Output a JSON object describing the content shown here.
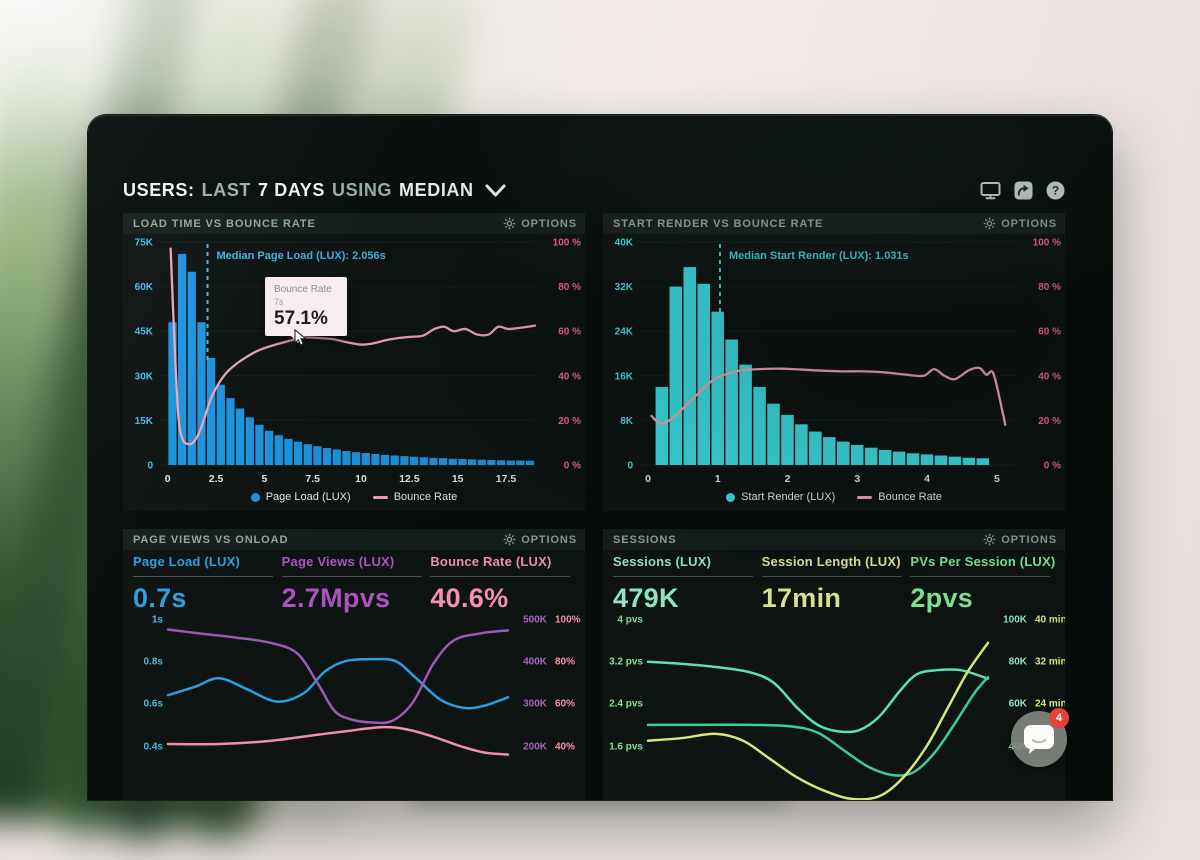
{
  "header": {
    "users": "USERS:",
    "range": "LAST",
    "days": "7 DAYS",
    "using": "USING",
    "metric": "MEDIAN",
    "icons": [
      "display-icon",
      "share-icon",
      "help-icon"
    ]
  },
  "panels": [
    {
      "title": "LOAD TIME VS BOUNCE RATE",
      "options_label": "OPTIONS",
      "tooltip": {
        "title": "Bounce Rate",
        "x_label": "7s",
        "value": "57.1%"
      },
      "legend": [
        {
          "label": "Page Load (LUX)"
        },
        {
          "label": "Bounce Rate"
        }
      ]
    },
    {
      "title": "START RENDER VS BOUNCE RATE",
      "options_label": "OPTIONS",
      "legend": [
        {
          "label": "Start Render (LUX)"
        },
        {
          "label": "Bounce Rate"
        }
      ]
    },
    {
      "title": "PAGE VIEWS VS ONLOAD",
      "options_label": "OPTIONS",
      "metrics": [
        {
          "label": "Page Load (LUX)",
          "value": "0.7s",
          "color": "#2b9fe0"
        },
        {
          "label": "Page Views (LUX)",
          "value": "2.7Mpvs",
          "color": "#ad52c0"
        },
        {
          "label": "Bounce Rate (LUX)",
          "value": "40.6%",
          "color": "#f791b1"
        }
      ]
    },
    {
      "title": "SESSIONS",
      "options_label": "OPTIONS",
      "metrics": [
        {
          "label": "Sessions (LUX)",
          "value": "479K",
          "color": "#96ecc7"
        },
        {
          "label": "Session Length (LUX)",
          "value": "17min",
          "color": "#e5ec99"
        },
        {
          "label": "PVs Per Session (LUX)",
          "value": "2pvs",
          "color": "#7fee98"
        }
      ]
    }
  ],
  "chat": {
    "badge": "4"
  },
  "chart_data": [
    {
      "id": "load_time",
      "type": "histogram+line",
      "title": "LOAD TIME VS BOUNCE RATE",
      "x": {
        "min": -0.4,
        "max": 19.0,
        "ticks": [
          0,
          2.5,
          5,
          7.5,
          10,
          12.5,
          15,
          17.5
        ],
        "tick_labels": [
          "0",
          "2.5",
          "5",
          "7.5",
          "10",
          "12.5",
          "15",
          "17.5"
        ],
        "unit": "seconds"
      },
      "y_left": {
        "color": "#49b8e8",
        "labels": [
          "75K",
          "60K",
          "45K",
          "30K",
          "15K",
          "0"
        ],
        "max": 75
      },
      "y_right": {
        "color": "#f0638f",
        "labels": [
          "100 %",
          "80 %",
          "60 %",
          "40 %",
          "20 %",
          "0 %"
        ],
        "max": 100
      },
      "bars": {
        "name": "Page Load (LUX)",
        "color": "#1d93dd",
        "bin_start": 0,
        "bin_width": 0.5,
        "ymax": 75,
        "values": [
          48,
          71,
          65,
          48,
          36,
          27,
          22.5,
          19,
          16,
          13.5,
          11.5,
          10,
          8.8,
          7.8,
          7,
          6.3,
          5.7,
          5.2,
          4.7,
          4.3,
          4,
          3.7,
          3.4,
          3.2,
          3,
          2.8,
          2.6,
          2.4,
          2.3,
          2.1,
          2,
          1.9,
          1.8,
          1.7,
          1.6,
          1.5,
          1.5,
          1.4
        ]
      },
      "line": {
        "name": "Bounce Rate",
        "color": "#efa3b6",
        "points": [
          [
            0.15,
            97
          ],
          [
            0.35,
            55
          ],
          [
            0.55,
            22
          ],
          [
            0.75,
            12
          ],
          [
            1,
            9.5
          ],
          [
            1.3,
            10
          ],
          [
            1.6,
            14
          ],
          [
            1.9,
            21
          ],
          [
            2.2,
            29
          ],
          [
            2.6,
            36
          ],
          [
            3,
            41
          ],
          [
            3.5,
            45
          ],
          [
            4,
            48
          ],
          [
            4.6,
            51
          ],
          [
            5.2,
            53
          ],
          [
            6,
            55
          ],
          [
            7,
            57.1
          ],
          [
            7.7,
            57
          ],
          [
            8.5,
            56.5
          ],
          [
            9.3,
            55
          ],
          [
            10,
            54
          ],
          [
            10.6,
            54.5
          ],
          [
            11.3,
            56
          ],
          [
            12,
            57
          ],
          [
            12.6,
            57.5
          ],
          [
            13.2,
            58
          ],
          [
            13.8,
            61
          ],
          [
            14.3,
            62
          ],
          [
            14.8,
            60
          ],
          [
            15.4,
            61
          ],
          [
            16,
            58.5
          ],
          [
            16.6,
            58.5
          ],
          [
            17.1,
            62
          ],
          [
            17.6,
            61
          ],
          [
            18.2,
            61.5
          ],
          [
            19,
            62.5
          ]
        ]
      },
      "median": {
        "label": "Median Page Load (LUX): 2.056s",
        "value": 2.056,
        "color": "#45b4e6"
      }
    },
    {
      "id": "start_render",
      "type": "histogram+line",
      "title": "START RENDER VS BOUNCE RATE",
      "x": {
        "min": -0.115,
        "max": 5.26,
        "ticks": [
          0,
          1,
          2,
          3,
          4,
          5
        ],
        "tick_labels": [
          "0",
          "1",
          "2",
          "3",
          "4",
          "5"
        ],
        "unit": "seconds"
      },
      "y_left": {
        "color": "#4fd8e0",
        "labels": [
          "40K",
          "32K",
          "24K",
          "16K",
          "8K",
          "0"
        ],
        "max": 40
      },
      "y_right": {
        "color": "#f0638f",
        "labels": [
          "100 %",
          "80 %",
          "60 %",
          "40 %",
          "20 %",
          "0 %"
        ],
        "max": 100
      },
      "bars": {
        "name": "Start Render (LUX)",
        "color": "#3bdce3",
        "bin_start": 0.1,
        "bin_width": 0.2,
        "ymax": 40,
        "values": [
          14,
          32,
          35.5,
          32.5,
          27.5,
          22.5,
          18,
          14,
          11,
          9,
          7.3,
          6,
          5,
          4.2,
          3.6,
          3.1,
          2.7,
          2.4,
          2.1,
          1.9,
          1.7,
          1.5,
          1.3,
          1.2
        ]
      },
      "line": {
        "name": "Bounce Rate",
        "color": "#efa3b6",
        "points": [
          [
            0.05,
            22
          ],
          [
            0.18,
            18.5
          ],
          [
            0.35,
            21
          ],
          [
            0.55,
            27
          ],
          [
            0.75,
            33
          ],
          [
            0.95,
            38.5
          ],
          [
            1.15,
            41
          ],
          [
            1.35,
            42.5
          ],
          [
            1.6,
            43
          ],
          [
            1.9,
            43.2
          ],
          [
            2.2,
            42.8
          ],
          [
            2.5,
            42.3
          ],
          [
            2.8,
            42
          ],
          [
            3.1,
            42
          ],
          [
            3.4,
            41.5
          ],
          [
            3.7,
            40.5
          ],
          [
            3.95,
            40
          ],
          [
            4.1,
            43
          ],
          [
            4.25,
            40
          ],
          [
            4.4,
            38.5
          ],
          [
            4.6,
            42.5
          ],
          [
            4.75,
            43.5
          ],
          [
            4.85,
            40.5
          ],
          [
            4.95,
            41
          ],
          [
            5.08,
            24
          ],
          [
            5.12,
            18
          ]
        ]
      },
      "median": {
        "label": "Median Start Render (LUX): 1.031s",
        "value": 1.031,
        "color": "#45d0de"
      }
    },
    {
      "id": "pageviews_onload",
      "type": "multi_line",
      "title": "PAGE VIEWS VS ONLOAD",
      "axes": {
        "left": {
          "color": "#49b8e8",
          "labels": [
            "1s",
            "0.8s",
            "0.6s",
            "0.4s"
          ]
        },
        "right1": {
          "color": "#a863b8",
          "labels": [
            "500K",
            "400K",
            "300K",
            "200K"
          ]
        },
        "right2": {
          "color": "#f791b1",
          "labels": [
            "100%",
            "80%",
            "60%",
            "40%"
          ]
        }
      },
      "series": [
        {
          "name": "Page Load (LUX)",
          "color": "#2b9fe0",
          "unit": "s",
          "scale": [
            0.14,
            1.047
          ],
          "points": [
            [
              0,
              0.64
            ],
            [
              0.08,
              0.68
            ],
            [
              0.15,
              0.72
            ],
            [
              0.23,
              0.67
            ],
            [
              0.32,
              0.61
            ],
            [
              0.4,
              0.65
            ],
            [
              0.46,
              0.75
            ],
            [
              0.52,
              0.8
            ],
            [
              0.6,
              0.81
            ],
            [
              0.67,
              0.8
            ],
            [
              0.73,
              0.72
            ],
            [
              0.8,
              0.62
            ],
            [
              0.87,
              0.58
            ],
            [
              0.93,
              0.59
            ],
            [
              1,
              0.63
            ]
          ]
        },
        {
          "name": "Page Views (LUX)",
          "color": "#9b59b3",
          "unit": "K pvs",
          "scale": [
            74,
            524
          ],
          "points": [
            [
              0,
              476
            ],
            [
              0.1,
              466
            ],
            [
              0.2,
              457
            ],
            [
              0.3,
              445
            ],
            [
              0.38,
              420
            ],
            [
              0.44,
              350
            ],
            [
              0.49,
              285
            ],
            [
              0.54,
              265
            ],
            [
              0.6,
              258
            ],
            [
              0.66,
              262
            ],
            [
              0.72,
              305
            ],
            [
              0.78,
              395
            ],
            [
              0.84,
              450
            ],
            [
              0.92,
              467
            ],
            [
              1,
              474
            ]
          ]
        },
        {
          "name": "Bounce Rate (LUX)",
          "color": "#ef8fa8",
          "unit": "%",
          "scale": [
            14,
            105
          ],
          "points": [
            [
              0,
              41
            ],
            [
              0.15,
              41
            ],
            [
              0.3,
              42.5
            ],
            [
              0.42,
              45
            ],
            [
              0.52,
              47
            ],
            [
              0.63,
              49
            ],
            [
              0.7,
              48
            ],
            [
              0.78,
              44.5
            ],
            [
              0.86,
              40
            ],
            [
              0.93,
              37
            ],
            [
              1,
              36
            ]
          ]
        }
      ]
    },
    {
      "id": "sessions",
      "type": "multi_line",
      "title": "SESSIONS",
      "axes": {
        "left": {
          "color": "#7fe596",
          "labels": [
            "4 pvs",
            "3.2 pvs",
            "2.4 pvs",
            "1.6 pvs"
          ]
        },
        "right1": {
          "color": "#8fe8c0",
          "labels": [
            "100K",
            "80K",
            "60K",
            "40K"
          ]
        },
        "right2": {
          "color": "#d6e878",
          "labels": [
            "40 min",
            "32 min",
            "24 min",
            ""
          ]
        }
      },
      "series": [
        {
          "name": "Sessions (LUX)",
          "color": "#5fe3ae",
          "unit": "K",
          "scale": [
            14,
            105
          ],
          "points": [
            [
              0,
              80
            ],
            [
              0.1,
              79
            ],
            [
              0.2,
              77.5
            ],
            [
              0.3,
              75
            ],
            [
              0.37,
              70
            ],
            [
              0.44,
              58
            ],
            [
              0.5,
              50
            ],
            [
              0.56,
              47
            ],
            [
              0.62,
              47.5
            ],
            [
              0.68,
              54
            ],
            [
              0.74,
              66
            ],
            [
              0.79,
              74
            ],
            [
              0.85,
              76
            ],
            [
              0.92,
              76
            ],
            [
              1,
              72
            ]
          ]
        },
        {
          "name": "PVs Per Session (LUX)",
          "color": "#3bcf97",
          "unit": "pvs",
          "scale": [
            0.56,
            4.19
          ],
          "points": [
            [
              0,
              2.0
            ],
            [
              0.15,
              2.0
            ],
            [
              0.3,
              2.0
            ],
            [
              0.42,
              1.97
            ],
            [
              0.5,
              1.85
            ],
            [
              0.58,
              1.5
            ],
            [
              0.65,
              1.2
            ],
            [
              0.72,
              1.05
            ],
            [
              0.78,
              1.1
            ],
            [
              0.84,
              1.45
            ],
            [
              0.9,
              2.0
            ],
            [
              0.96,
              2.6
            ],
            [
              1,
              2.9
            ]
          ]
        },
        {
          "name": "Session Length (LUX)",
          "color": "#d6e878",
          "unit": "min",
          "scale": [
            5.6,
            41.9
          ],
          "points": [
            [
              0,
              17
            ],
            [
              0.1,
              17.5
            ],
            [
              0.2,
              18.3
            ],
            [
              0.28,
              17
            ],
            [
              0.36,
              13.5
            ],
            [
              0.44,
              10
            ],
            [
              0.52,
              7.5
            ],
            [
              0.6,
              6
            ],
            [
              0.68,
              6.5
            ],
            [
              0.75,
              10
            ],
            [
              0.82,
              16
            ],
            [
              0.88,
              23
            ],
            [
              0.94,
              30
            ],
            [
              1,
              35.5
            ]
          ]
        }
      ]
    }
  ]
}
